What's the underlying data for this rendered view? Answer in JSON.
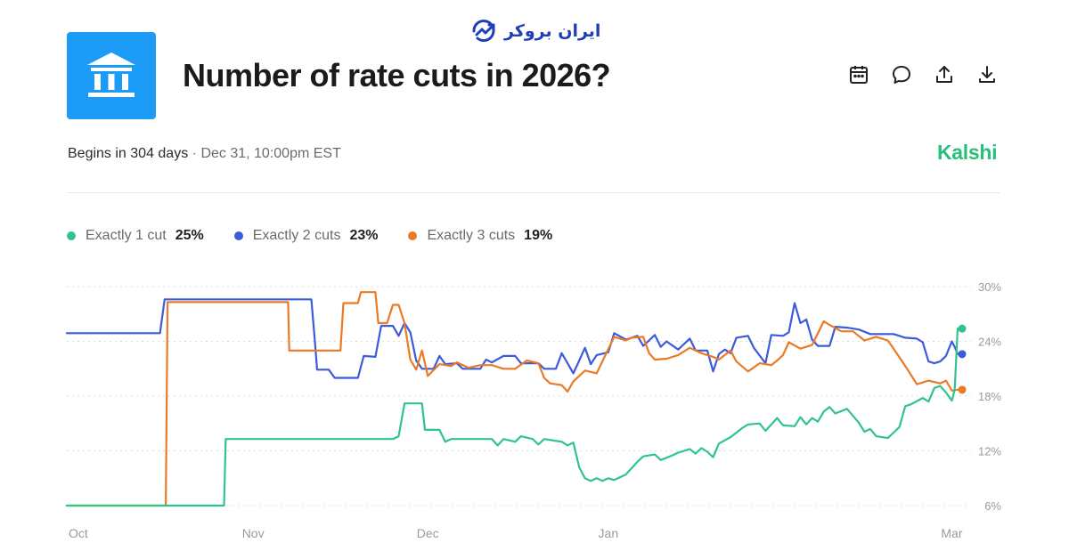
{
  "watermark": {
    "text": "ایران بروکر"
  },
  "market": {
    "title": "Number of rate cuts in 2026?",
    "begins": "Begins in 304 days",
    "separator": "·",
    "date": "Dec 31, 10:00pm EST",
    "brand": "Kalshi"
  },
  "colors": {
    "accent": "#1c9cf6",
    "brand": "#27c07a",
    "series1": "#2fc48b",
    "series2": "#3b5bdb",
    "series3": "#ea7a24"
  },
  "actions": [
    "calendar-icon",
    "comment-icon",
    "share-icon",
    "download-icon"
  ],
  "legend": [
    {
      "name": "Exactly 1 cut",
      "value": "25%"
    },
    {
      "name": "Exactly 2 cuts",
      "value": "23%"
    },
    {
      "name": "Exactly 3 cuts",
      "value": "19%"
    }
  ],
  "chart_data": {
    "type": "line",
    "title": "",
    "xlabel": "",
    "ylabel": "",
    "x_ticks": [
      "Oct",
      "Nov",
      "Dec",
      "Jan",
      "Mar"
    ],
    "x_tick_days": [
      0,
      31,
      61,
      92,
      151
    ],
    "y_ticks": [
      "30%",
      "24%",
      "18%",
      "12%",
      "6%"
    ],
    "y_tick_values": [
      30,
      24,
      18,
      12,
      6
    ],
    "ylim": [
      6,
      30
    ],
    "xlim": [
      -1,
      152
    ],
    "grid": true,
    "series": [
      {
        "name": "Exactly 1 cut",
        "color": "#2fc48b",
        "final": 25.4,
        "points": [
          [
            -1,
            6
          ],
          [
            26,
            6
          ],
          [
            26.3,
            13.3
          ],
          [
            55,
            13.3
          ],
          [
            56,
            13.6
          ],
          [
            57,
            17.2
          ],
          [
            60,
            17.2
          ],
          [
            60.5,
            14.3
          ],
          [
            63,
            14.3
          ],
          [
            64,
            13.0
          ],
          [
            65,
            13.3
          ],
          [
            72,
            13.3
          ],
          [
            73,
            12.6
          ],
          [
            74,
            13.3
          ],
          [
            76,
            13.0
          ],
          [
            77,
            13.6
          ],
          [
            79,
            13.3
          ],
          [
            80,
            12.7
          ],
          [
            81,
            13.3
          ],
          [
            84,
            13.0
          ],
          [
            85,
            12.6
          ],
          [
            86,
            12.9
          ],
          [
            87,
            10.2
          ],
          [
            88,
            9.0
          ],
          [
            89,
            8.7
          ],
          [
            90,
            9.0
          ],
          [
            91,
            8.7
          ],
          [
            92,
            9.0
          ],
          [
            93,
            8.8
          ],
          [
            95,
            9.4
          ],
          [
            96,
            10.1
          ],
          [
            97,
            10.8
          ],
          [
            98,
            11.4
          ],
          [
            100,
            11.6
          ],
          [
            101,
            11.0
          ],
          [
            103,
            11.5
          ],
          [
            104,
            11.8
          ],
          [
            106,
            12.2
          ],
          [
            107,
            11.7
          ],
          [
            108,
            12.3
          ],
          [
            109,
            11.9
          ],
          [
            110,
            11.3
          ],
          [
            111,
            12.8
          ],
          [
            113,
            13.5
          ],
          [
            115,
            14.5
          ],
          [
            116,
            14.9
          ],
          [
            118,
            15.0
          ],
          [
            119,
            14.2
          ],
          [
            121,
            15.6
          ],
          [
            122,
            14.8
          ],
          [
            124,
            14.7
          ],
          [
            125,
            15.7
          ],
          [
            126,
            14.9
          ],
          [
            127,
            15.6
          ],
          [
            128,
            15.2
          ],
          [
            129,
            16.3
          ],
          [
            130,
            16.8
          ],
          [
            131,
            16.1
          ],
          [
            133,
            16.6
          ],
          [
            135,
            15.1
          ],
          [
            136,
            14.1
          ],
          [
            137,
            14.4
          ],
          [
            138,
            13.6
          ],
          [
            140,
            13.4
          ],
          [
            141,
            14.0
          ],
          [
            142,
            14.6
          ],
          [
            143,
            16.9
          ],
          [
            144,
            17.1
          ],
          [
            146,
            17.8
          ],
          [
            147,
            17.4
          ],
          [
            148,
            18.9
          ],
          [
            149,
            19.1
          ],
          [
            150,
            18.4
          ],
          [
            151,
            17.5
          ],
          [
            151.5,
            18.7
          ],
          [
            152,
            25.4
          ]
        ]
      },
      {
        "name": "Exactly 2 cuts",
        "color": "#3b5bdb",
        "final": 22.6,
        "points": [
          [
            -1,
            24.9
          ],
          [
            15,
            24.9
          ],
          [
            15.8,
            28.6
          ],
          [
            41,
            28.6
          ],
          [
            41.5,
            24.8
          ],
          [
            42,
            20.9
          ],
          [
            44,
            20.9
          ],
          [
            45,
            20.0
          ],
          [
            49,
            20.0
          ],
          [
            50,
            22.4
          ],
          [
            52,
            22.3
          ],
          [
            53,
            25.7
          ],
          [
            55,
            25.7
          ],
          [
            56,
            24.6
          ],
          [
            57,
            26.0
          ],
          [
            58,
            25.0
          ],
          [
            59,
            21.9
          ],
          [
            60,
            21.0
          ],
          [
            62,
            21.0
          ],
          [
            63,
            22.4
          ],
          [
            64,
            21.5
          ],
          [
            66,
            21.6
          ],
          [
            67,
            21.0
          ],
          [
            70,
            21.0
          ],
          [
            71,
            22.0
          ],
          [
            72,
            21.7
          ],
          [
            74,
            22.4
          ],
          [
            76,
            22.4
          ],
          [
            77,
            21.6
          ],
          [
            80,
            21.6
          ],
          [
            81,
            21.0
          ],
          [
            83,
            21.0
          ],
          [
            84,
            22.7
          ],
          [
            85,
            21.6
          ],
          [
            86,
            20.5
          ],
          [
            87,
            21.9
          ],
          [
            88,
            23.3
          ],
          [
            89,
            21.5
          ],
          [
            90,
            22.5
          ],
          [
            92,
            22.8
          ],
          [
            93,
            24.9
          ],
          [
            95,
            24.2
          ],
          [
            97,
            24.6
          ],
          [
            98,
            23.5
          ],
          [
            100,
            24.7
          ],
          [
            101,
            23.4
          ],
          [
            102,
            24.0
          ],
          [
            104,
            23.1
          ],
          [
            106,
            24.3
          ],
          [
            107,
            23.0
          ],
          [
            109,
            23.0
          ],
          [
            110,
            20.7
          ],
          [
            111,
            22.6
          ],
          [
            112,
            23.1
          ],
          [
            113,
            22.7
          ],
          [
            114,
            24.4
          ],
          [
            116,
            24.6
          ],
          [
            117,
            23.3
          ],
          [
            119,
            21.6
          ],
          [
            120,
            24.7
          ],
          [
            122,
            24.6
          ],
          [
            123,
            25.0
          ],
          [
            124,
            28.2
          ],
          [
            125,
            26.0
          ],
          [
            126,
            26.4
          ],
          [
            127,
            24.2
          ],
          [
            128,
            23.5
          ],
          [
            130,
            23.5
          ],
          [
            131,
            25.6
          ],
          [
            133,
            25.5
          ],
          [
            135,
            25.3
          ],
          [
            137,
            24.8
          ],
          [
            139,
            24.8
          ],
          [
            141,
            24.8
          ],
          [
            142,
            24.6
          ],
          [
            143,
            24.4
          ],
          [
            145,
            24.3
          ],
          [
            146,
            23.9
          ],
          [
            147,
            21.8
          ],
          [
            148,
            21.6
          ],
          [
            149,
            21.8
          ],
          [
            150,
            22.4
          ],
          [
            151,
            24.0
          ],
          [
            151.5,
            23.4
          ],
          [
            152,
            22.6
          ]
        ]
      },
      {
        "name": "Exactly 3 cuts",
        "color": "#ea7a24",
        "final": 18.7,
        "points": [
          [
            -1,
            6
          ],
          [
            16,
            6
          ],
          [
            16.3,
            28.3
          ],
          [
            37,
            28.3
          ],
          [
            37.2,
            23.0
          ],
          [
            46,
            23.0
          ],
          [
            46.5,
            28.2
          ],
          [
            49,
            28.2
          ],
          [
            49.5,
            29.4
          ],
          [
            52,
            29.4
          ],
          [
            52.5,
            26.0
          ],
          [
            54,
            26.0
          ],
          [
            55,
            28.0
          ],
          [
            56,
            28.0
          ],
          [
            57,
            26.0
          ],
          [
            58,
            22.0
          ],
          [
            59,
            20.9
          ],
          [
            60,
            23.0
          ],
          [
            61,
            20.2
          ],
          [
            63,
            21.5
          ],
          [
            65,
            21.3
          ],
          [
            66,
            21.7
          ],
          [
            68,
            21.1
          ],
          [
            70,
            21.4
          ],
          [
            72,
            21.4
          ],
          [
            74,
            21.0
          ],
          [
            76,
            21.0
          ],
          [
            78,
            21.9
          ],
          [
            80,
            21.6
          ],
          [
            81,
            20.0
          ],
          [
            82,
            19.4
          ],
          [
            84,
            19.2
          ],
          [
            85,
            18.5
          ],
          [
            86,
            19.6
          ],
          [
            88,
            20.8
          ],
          [
            90,
            20.5
          ],
          [
            93,
            24.5
          ],
          [
            95,
            24.1
          ],
          [
            96,
            24.4
          ],
          [
            98,
            24.5
          ],
          [
            99,
            22.7
          ],
          [
            100,
            22.0
          ],
          [
            102,
            22.1
          ],
          [
            104,
            22.5
          ],
          [
            106,
            23.3
          ],
          [
            108,
            22.7
          ],
          [
            110,
            22.3
          ],
          [
            111,
            22.0
          ],
          [
            113,
            23.0
          ],
          [
            114,
            21.8
          ],
          [
            116,
            20.7
          ],
          [
            118,
            21.6
          ],
          [
            120,
            21.4
          ],
          [
            121,
            21.9
          ],
          [
            122,
            22.5
          ],
          [
            123,
            23.9
          ],
          [
            125,
            23.2
          ],
          [
            127,
            23.6
          ],
          [
            129,
            26.2
          ],
          [
            130,
            25.8
          ],
          [
            132,
            25.1
          ],
          [
            134,
            25.1
          ],
          [
            136,
            24.1
          ],
          [
            138,
            24.5
          ],
          [
            140,
            24.1
          ],
          [
            141,
            23.2
          ],
          [
            143,
            21.3
          ],
          [
            144,
            20.3
          ],
          [
            145,
            19.3
          ],
          [
            147,
            19.7
          ],
          [
            149,
            19.4
          ],
          [
            150,
            19.7
          ],
          [
            151,
            18.6
          ],
          [
            152,
            18.7
          ]
        ]
      }
    ]
  }
}
